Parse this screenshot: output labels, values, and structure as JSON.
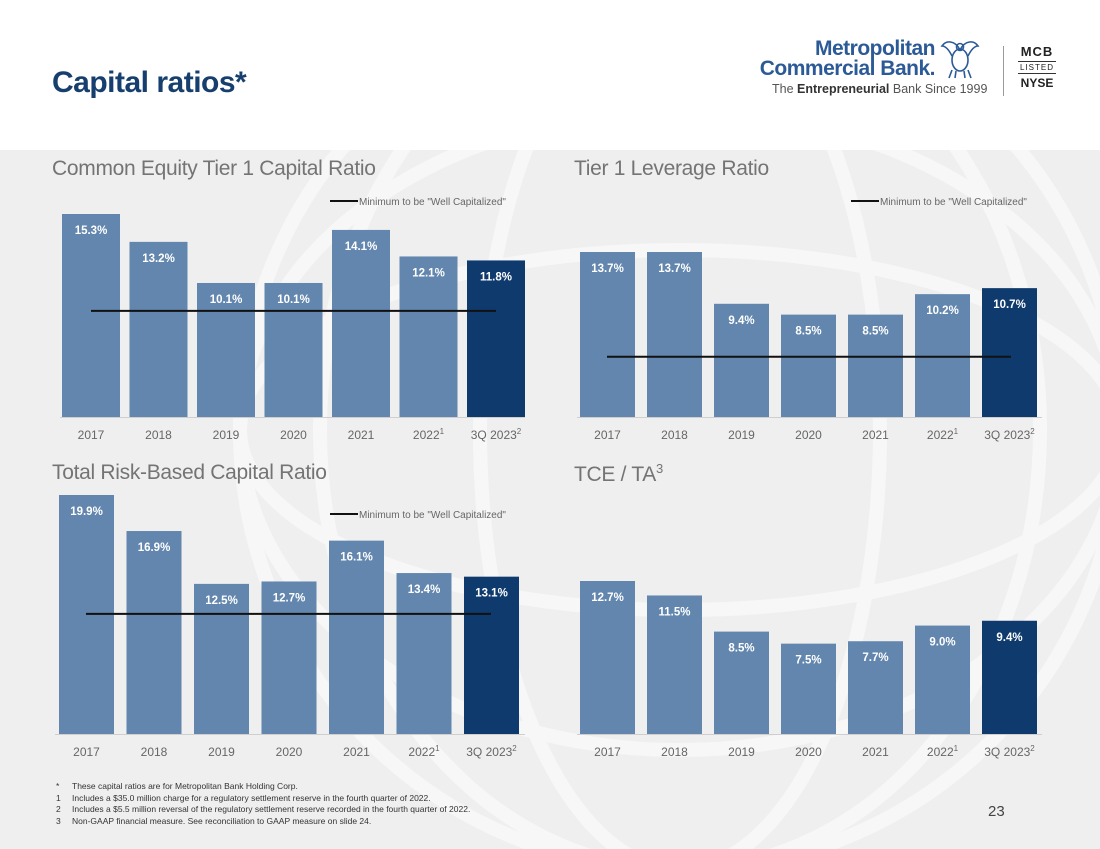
{
  "page": {
    "title": "Capital ratios*",
    "page_number": "23"
  },
  "logo": {
    "name_line1": "Metropolitan",
    "name_line2": "Commercial Bank.",
    "tagline_pre": "The ",
    "tagline_bold": "Entrepreneurial",
    "tagline_post": " Bank Since 1999",
    "ticker": "MCB",
    "listed": "LISTED",
    "exchange": "NYSE"
  },
  "colors": {
    "bar": "#6286ad",
    "bar_highlight": "#0f3a6d",
    "title": "#163f6e"
  },
  "chart_data": [
    {
      "type": "bar",
      "title": "Common Equity Tier 1 Capital Ratio",
      "title_sup": "",
      "categories": [
        "2017",
        "2018",
        "2019",
        "2020",
        "2021",
        "2022",
        "3Q 2023"
      ],
      "category_sups": [
        "",
        "",
        "",
        "",
        "",
        "1",
        "2"
      ],
      "values": [
        15.3,
        13.2,
        10.1,
        10.1,
        14.1,
        12.1,
        11.8
      ],
      "labels": [
        "15.3%",
        "13.2%",
        "10.1%",
        "10.1%",
        "14.1%",
        "12.1%",
        "11.8%"
      ],
      "highlight_index": 6,
      "threshold": 8.0,
      "legend": "Minimum to be \"Well Capitalized\"",
      "ylim": [
        0,
        15.3
      ]
    },
    {
      "type": "bar",
      "title": "Tier 1 Leverage Ratio",
      "title_sup": "",
      "categories": [
        "2017",
        "2018",
        "2019",
        "2020",
        "2021",
        "2022",
        "3Q 2023"
      ],
      "category_sups": [
        "",
        "",
        "",
        "",
        "",
        "1",
        "2"
      ],
      "values": [
        13.7,
        13.7,
        9.4,
        8.5,
        8.5,
        10.2,
        10.7
      ],
      "labels": [
        "13.7%",
        "13.7%",
        "9.4%",
        "8.5%",
        "8.5%",
        "10.2%",
        "10.7%"
      ],
      "highlight_index": 6,
      "threshold": 5.0,
      "legend": "Minimum to be \"Well Capitalized\"",
      "ylim": [
        0,
        13.7
      ]
    },
    {
      "type": "bar",
      "title": "Total Risk-Based Capital Ratio",
      "title_sup": "",
      "categories": [
        "2017",
        "2018",
        "2019",
        "2020",
        "2021",
        "2022",
        "3Q 2023"
      ],
      "category_sups": [
        "",
        "",
        "",
        "",
        "",
        "1",
        "2"
      ],
      "values": [
        19.9,
        16.9,
        12.5,
        12.7,
        16.1,
        13.4,
        13.1
      ],
      "labels": [
        "19.9%",
        "16.9%",
        "12.5%",
        "12.7%",
        "16.1%",
        "13.4%",
        "13.1%"
      ],
      "highlight_index": 6,
      "threshold": 10.0,
      "legend": "Minimum to be \"Well Capitalized\"",
      "ylim": [
        0,
        19.9
      ]
    },
    {
      "type": "bar",
      "title": "TCE / TA",
      "title_sup": "3",
      "categories": [
        "2017",
        "2018",
        "2019",
        "2020",
        "2021",
        "2022",
        "3Q 2023"
      ],
      "category_sups": [
        "",
        "",
        "",
        "",
        "",
        "1",
        "2"
      ],
      "values": [
        12.7,
        11.5,
        8.5,
        7.5,
        7.7,
        9.0,
        9.4
      ],
      "labels": [
        "12.7%",
        "11.5%",
        "8.5%",
        "7.5%",
        "7.7%",
        "9.0%",
        "9.4%"
      ],
      "highlight_index": 6,
      "threshold": null,
      "legend": "",
      "ylim": [
        0,
        12.7
      ]
    }
  ],
  "footnotes": [
    {
      "mark": "*",
      "text": "These capital ratios are for Metropolitan Bank Holding Corp."
    },
    {
      "mark": "1",
      "text": "Includes a $35.0 million charge for a regulatory settlement reserve in the fourth quarter of 2022."
    },
    {
      "mark": "2",
      "text": "Includes a $5.5 million reversal of the regulatory settlement reserve recorded in the fourth quarter of 2022."
    },
    {
      "mark": "3",
      "text": "Non-GAAP financial measure. See reconciliation to GAAP measure on slide 24."
    }
  ]
}
